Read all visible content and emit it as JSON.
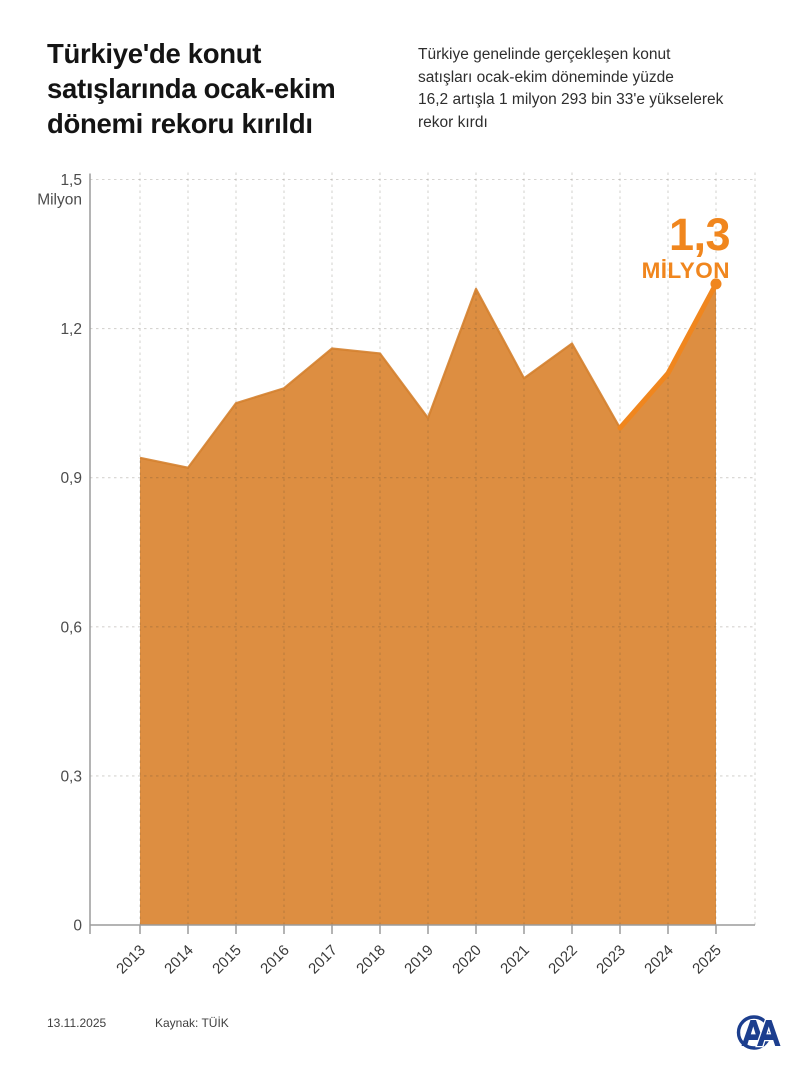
{
  "header": {
    "title": "Türkiye'de konut\nsatışlarında ocak-ekim\ndönemi rekoru kırıldı",
    "subtitle": "Türkiye genelinde gerçekleşen konut\nsatışları ocak-ekim döneminde yüzde\n16,2 artışla 1 milyon 293 bin 33'e yükselerek\nrekor kırdı"
  },
  "annotation": {
    "value": "1,3",
    "unit": "MİLYON"
  },
  "chart_data": {
    "type": "area",
    "title": "Türkiye'de konut satışlarında ocak-ekim dönemi rekoru kırıldı",
    "x": [
      "2013",
      "2014",
      "2015",
      "2016",
      "2017",
      "2018",
      "2019",
      "2020",
      "2021",
      "2022",
      "2023",
      "2024",
      "2025"
    ],
    "values": [
      0.94,
      0.92,
      1.05,
      1.08,
      1.16,
      1.15,
      1.02,
      1.28,
      1.1,
      1.17,
      1.0,
      1.11,
      1.29
    ],
    "xlabel": "",
    "ylabel": "Milyon",
    "ylim": [
      0,
      1.5
    ],
    "yticks": [
      0,
      0.3,
      0.6,
      0.9,
      1.2,
      1.5
    ],
    "ytick_labels": [
      "0",
      "0,3",
      "0,6",
      "0,9",
      "1,2",
      "1,5"
    ],
    "grid": true,
    "legend": false,
    "highlight_from_index": 10,
    "end_marker": true,
    "colors": {
      "fill": "#DD8E41",
      "edge": "#D4812F",
      "highlight": "#F0861E",
      "grid": "#d6d4d1",
      "axis": "#9b9b9b",
      "tick_text": "#3b3b3b",
      "ytick_text": "#4c4c4c"
    }
  },
  "footer": {
    "date": "13.11.2025",
    "source": "Kaynak: TÜİK",
    "logo_color": "#1C3E8E"
  }
}
